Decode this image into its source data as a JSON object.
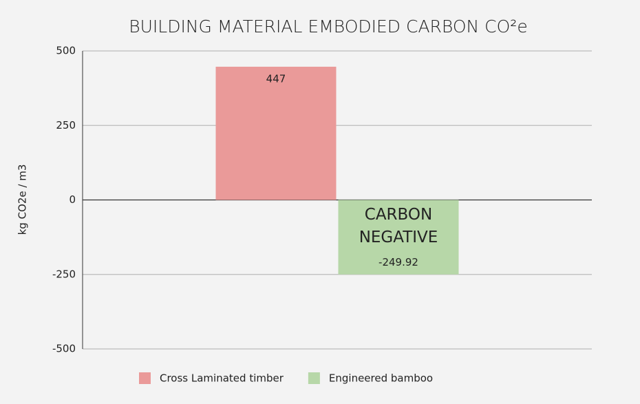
{
  "chart_data": {
    "type": "bar",
    "title": "BUILDING MATERIAL EMBODIED CARBON CO²e",
    "y_label": "kg CO2e / m3",
    "categories": [
      null
    ],
    "series": [
      {
        "name": "Cross Laminated timber",
        "color": "#ea9a99",
        "values": [
          447
        ]
      },
      {
        "name": "Engineered bamboo",
        "color": "#b7d7a8",
        "values": [
          -249.92
        ]
      }
    ],
    "annotation": [
      "CARBON",
      "NEGATIVE"
    ],
    "ylim": [
      -500,
      500
    ],
    "yticks": [
      -500,
      -250,
      0,
      250,
      500
    ],
    "grid": true,
    "legend": "bottom"
  }
}
